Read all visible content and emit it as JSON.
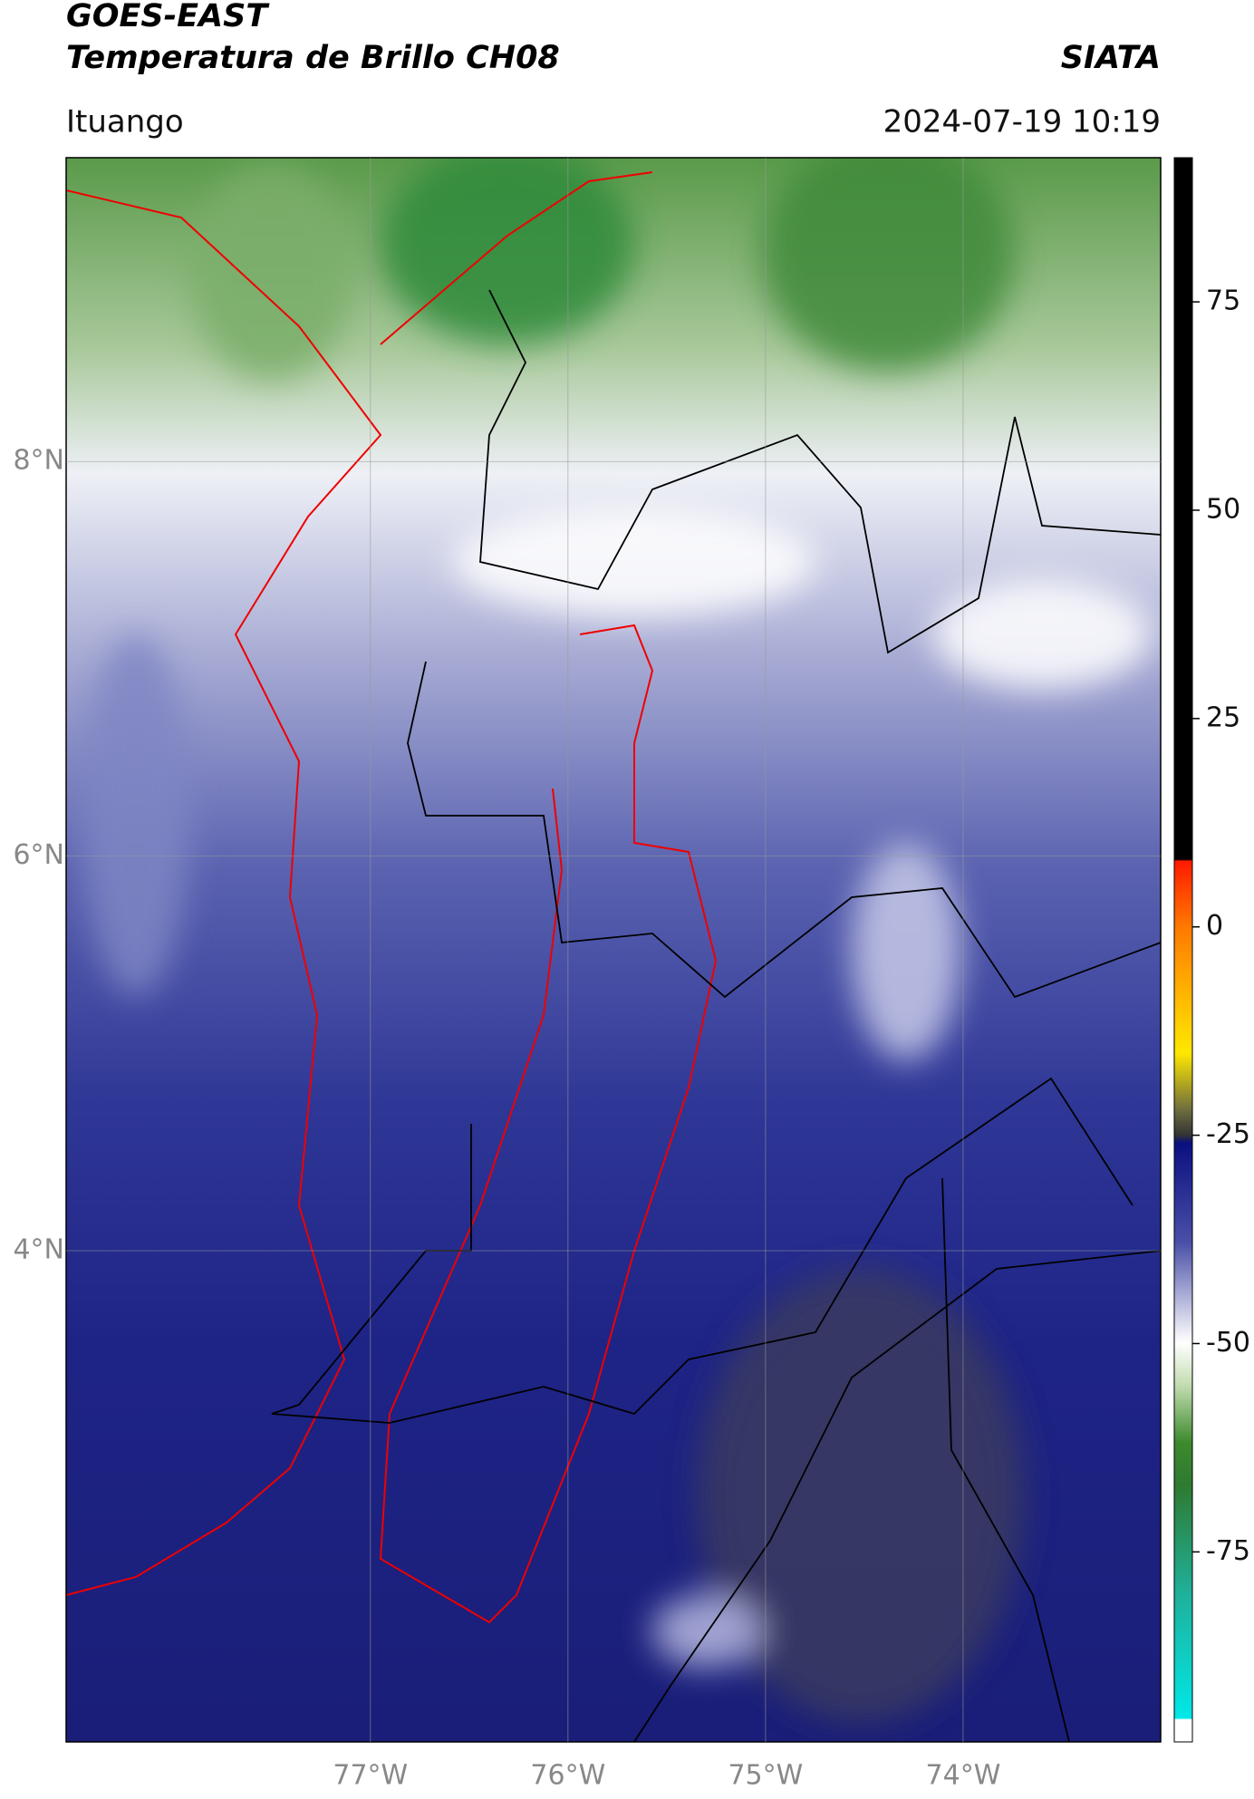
{
  "header": {
    "title": "GOES-EAST",
    "subtitle": "Temperatura de Brillo CH08",
    "source": "SIATA",
    "location": "Ituango",
    "datetime": "2024-07-19 10:19"
  },
  "map": {
    "lonlim": [
      -78.54,
      -73.0
    ],
    "latlim": [
      1.51,
      9.54
    ],
    "lonticks": [
      {
        "value": -77,
        "label": "77°W"
      },
      {
        "value": -76,
        "label": "76°W"
      },
      {
        "value": -75,
        "label": "75°W"
      },
      {
        "value": -74,
        "label": "74°W"
      }
    ],
    "latticks": [
      {
        "value": 8,
        "label": "8°N"
      },
      {
        "value": 6,
        "label": "6°N"
      },
      {
        "value": 4,
        "label": "4°N"
      }
    ],
    "grid": true
  },
  "colorbar": {
    "lim": [
      -97.8,
      92.3
    ],
    "ticks": [
      75,
      50,
      25,
      0,
      -25,
      -50,
      -75
    ]
  }
}
